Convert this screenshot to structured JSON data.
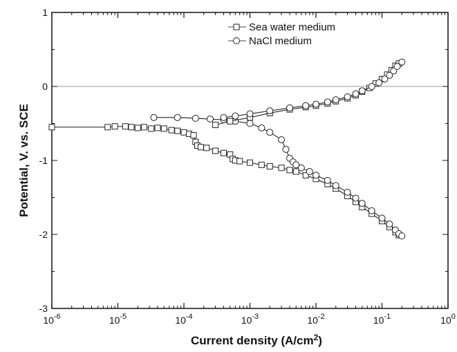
{
  "chart_data": {
    "type": "scatter",
    "title": "",
    "xlabel": "Current density (A/cm",
    "xlabel_superscript": "2",
    "xlabel_suffix": ")",
    "ylabel": "Potential, V. vs. SCE",
    "x_scale": "log",
    "xlim": [
      1e-06,
      1
    ],
    "ylim": [
      -3,
      1
    ],
    "x_ticks": [
      {
        "base": "10",
        "exp": "-6"
      },
      {
        "base": "10",
        "exp": "-5"
      },
      {
        "base": "10",
        "exp": "-4"
      },
      {
        "base": "10",
        "exp": "-3"
      },
      {
        "base": "10",
        "exp": "-2"
      },
      {
        "base": "10",
        "exp": "-1"
      },
      {
        "base": "10",
        "exp": "0"
      }
    ],
    "y_ticks": [
      "1",
      "0",
      "-1",
      "-2",
      "-3"
    ],
    "y_tick_values": [
      1,
      0,
      -1,
      -2,
      -3
    ],
    "reference_line_y": 0,
    "grid": false,
    "legend_position": "top-center",
    "series": [
      {
        "name": "Sea water medium",
        "marker": "square",
        "line": "solid",
        "x": [
          1e-06,
          7e-06,
          9e-06,
          1.3e-05,
          1.6e-05,
          2e-05,
          2.5e-05,
          3.2e-05,
          4e-05,
          5e-05,
          6.5e-05,
          8e-05,
          0.0001,
          0.00012,
          0.00014,
          0.00015,
          0.00016,
          0.00018,
          0.00022,
          0.0003,
          0.0004,
          0.0005,
          0.00055,
          0.0006,
          0.0007,
          0.001,
          0.0015,
          0.002,
          0.003,
          0.004,
          0.005,
          0.007,
          0.01,
          0.015,
          0.02,
          0.03,
          0.04,
          0.05,
          0.07,
          0.1,
          0.13,
          0.16,
          0.18
        ],
        "y": [
          -0.55,
          -0.55,
          -0.54,
          -0.54,
          -0.55,
          -0.56,
          -0.55,
          -0.57,
          -0.56,
          -0.57,
          -0.59,
          -0.6,
          -0.62,
          -0.64,
          -0.66,
          -0.75,
          -0.8,
          -0.82,
          -0.83,
          -0.87,
          -0.9,
          -0.92,
          -0.98,
          -1.0,
          -1.01,
          -1.03,
          -1.06,
          -1.08,
          -1.1,
          -1.13,
          -1.15,
          -1.2,
          -1.25,
          -1.32,
          -1.38,
          -1.48,
          -1.56,
          -1.63,
          -1.72,
          -1.82,
          -1.9,
          -1.97,
          -2.01
        ]
      },
      {
        "name": "NaCl medium",
        "marker": "circle",
        "line": "solid",
        "x": [
          3.5e-05,
          8e-05,
          0.00015,
          0.00025,
          0.0004,
          0.0006,
          0.001,
          0.0015,
          0.002,
          0.003,
          0.0035,
          0.004,
          0.0045,
          0.005,
          0.006,
          0.008,
          0.01,
          0.015,
          0.02,
          0.03,
          0.04,
          0.05,
          0.07,
          0.1,
          0.13,
          0.16,
          0.18,
          0.2
        ],
        "y": [
          -0.42,
          -0.42,
          -0.43,
          -0.44,
          -0.45,
          -0.47,
          -0.5,
          -0.56,
          -0.62,
          -0.72,
          -0.85,
          -0.97,
          -1.02,
          -1.06,
          -1.1,
          -1.15,
          -1.2,
          -1.27,
          -1.34,
          -1.43,
          -1.51,
          -1.58,
          -1.68,
          -1.78,
          -1.86,
          -1.94,
          -1.99,
          -2.02
        ]
      },
      {
        "name": "",
        "marker": "square",
        "line": "solid",
        "x": [
          0.0003,
          0.0005,
          0.001,
          0.002,
          0.004,
          0.007,
          0.01,
          0.015,
          0.02,
          0.03,
          0.04,
          0.05,
          0.065,
          0.08,
          0.1,
          0.12,
          0.14,
          0.16,
          0.18
        ],
        "y": [
          -0.52,
          -0.47,
          -0.42,
          -0.36,
          -0.31,
          -0.28,
          -0.26,
          -0.23,
          -0.2,
          -0.16,
          -0.12,
          -0.07,
          -0.02,
          0.04,
          0.1,
          0.16,
          0.22,
          0.28,
          0.31
        ]
      },
      {
        "name": "",
        "marker": "circle",
        "line": "solid",
        "x": [
          0.0004,
          0.0006,
          0.001,
          0.002,
          0.004,
          0.007,
          0.01,
          0.015,
          0.02,
          0.03,
          0.04,
          0.05,
          0.07,
          0.09,
          0.11,
          0.13,
          0.15,
          0.17,
          0.2
        ],
        "y": [
          -0.42,
          -0.4,
          -0.37,
          -0.33,
          -0.29,
          -0.26,
          -0.24,
          -0.21,
          -0.18,
          -0.14,
          -0.1,
          -0.06,
          0.0,
          0.05,
          0.1,
          0.15,
          0.21,
          0.27,
          0.33
        ]
      }
    ]
  }
}
